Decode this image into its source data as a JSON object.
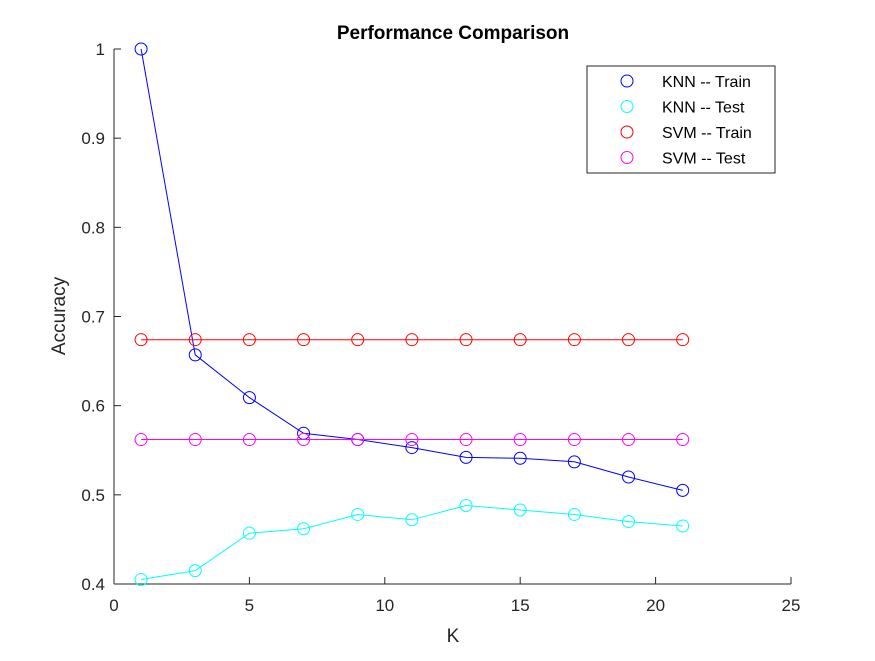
{
  "chart_data": {
    "type": "line",
    "title": "Performance Comparison",
    "xlabel": "K",
    "ylabel": "Accuracy",
    "xlim": [
      0,
      25
    ],
    "ylim": [
      0.4,
      1
    ],
    "xticks": [
      0,
      5,
      10,
      15,
      20,
      25
    ],
    "yticks": [
      0.4,
      0.5,
      0.6,
      0.7,
      0.8,
      0.9,
      1
    ],
    "ytick_labels": [
      "0.4",
      "0.5",
      "0.6",
      "0.7",
      "0.8",
      "0.9",
      "1"
    ],
    "grid": false,
    "legend_position": "top-right",
    "x": [
      1,
      3,
      5,
      7,
      9,
      11,
      13,
      15,
      17,
      19,
      21
    ],
    "series": [
      {
        "name": "KNN -- Train",
        "color": "#0000ff",
        "marker": "circle",
        "values": [
          1.0,
          0.657,
          0.609,
          0.569,
          0.562,
          0.553,
          0.542,
          0.541,
          0.537,
          0.52,
          0.505
        ]
      },
      {
        "name": "KNN -- Test",
        "color": "#00ffff",
        "marker": "circle",
        "values": [
          0.405,
          0.415,
          0.457,
          0.462,
          0.478,
          0.472,
          0.488,
          0.483,
          0.478,
          0.47,
          0.465
        ]
      },
      {
        "name": "SVM -- Train",
        "color": "#ff0000",
        "marker": "circle",
        "values": [
          0.674,
          0.674,
          0.674,
          0.674,
          0.674,
          0.674,
          0.674,
          0.674,
          0.674,
          0.674,
          0.674
        ]
      },
      {
        "name": "SVM -- Test",
        "color": "#ff00ff",
        "marker": "circle",
        "values": [
          0.562,
          0.562,
          0.562,
          0.562,
          0.562,
          0.562,
          0.562,
          0.562,
          0.562,
          0.562,
          0.562
        ]
      }
    ]
  }
}
